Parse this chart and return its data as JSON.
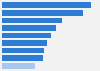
{
  "values": [
    100,
    91,
    67,
    61,
    55,
    51,
    47,
    46,
    37
  ],
  "bar_color": "#2d7dd6",
  "last_bar_color": "#a8c8f0",
  "background_color": "#f2f2f2",
  "figsize": [
    1.0,
    0.71
  ],
  "bar_height": 0.75,
  "xlim": [
    0,
    108
  ]
}
